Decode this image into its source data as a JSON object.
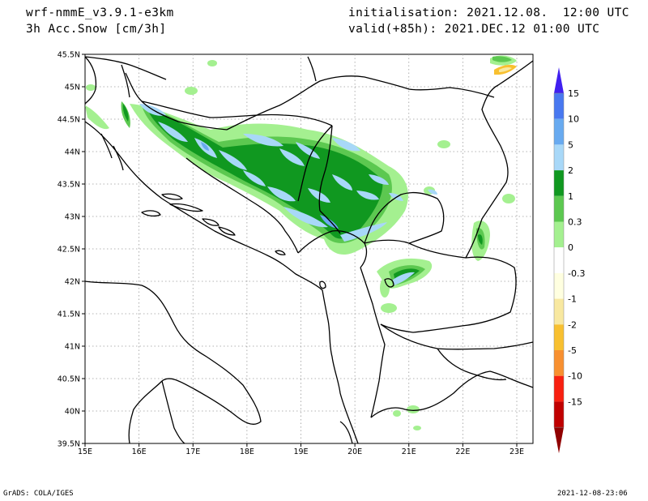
{
  "header": {
    "model": "wrf-nmmE_v3.9.1-e3km",
    "field": "3h Acc.Snow [cm/3h]",
    "init": "initialisation: 2021.12.08.  12:00 UTC",
    "valid": "valid(+85h): 2021.DEC.12 01:00 UTC"
  },
  "map": {
    "lon_ticks": [
      "15E",
      "16E",
      "17E",
      "18E",
      "19E",
      "20E",
      "21E",
      "22E",
      "23E"
    ],
    "lat_ticks": [
      "45.5N",
      "45N",
      "44.5N",
      "44N",
      "43.5N",
      "43N",
      "42.5N",
      "42N",
      "41.5N",
      "41N",
      "40.5N",
      "40N",
      "39.5N"
    ],
    "lon_range": [
      15,
      23.3
    ],
    "lat_range": [
      39.5,
      45.5
    ]
  },
  "legend": {
    "labels": [
      "15",
      "10",
      "5",
      "2",
      "1",
      "0.3",
      "0",
      "-0.3",
      "-1",
      "-2",
      "-5",
      "-10",
      "-15"
    ],
    "colors": [
      "#4020f0",
      "#4878f0",
      "#68aaf0",
      "#a8d8f8",
      "#109820",
      "#5cc850",
      "#a4f090",
      "#ffffff",
      "#ffffe0",
      "#f8e8a0",
      "#f8c030",
      "#f89030",
      "#f82010",
      "#c00000",
      "#900000"
    ]
  },
  "footer": {
    "left": "GrADS: COLA/IGES",
    "right": "2021-12-08-23:06"
  }
}
